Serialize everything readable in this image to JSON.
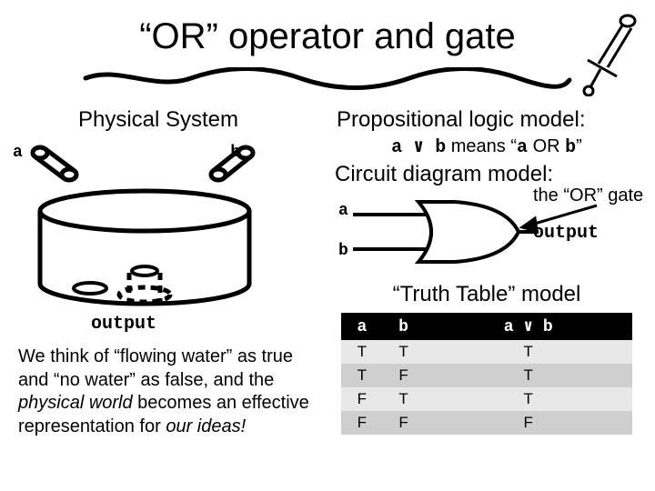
{
  "title": "“OR” operator and gate",
  "left": {
    "heading": "Physical System",
    "labels": {
      "a": "a",
      "b": "b",
      "output": "output"
    },
    "explain_html": "We think of “flowing water” as true and “no water” as false, and the <i>physical world</i> becomes an effective representation for <i>our ideas!</i>"
  },
  "right": {
    "prop": {
      "heading": "Propositional logic model:",
      "sub_html": "<span class=\"mono\">a &or; b</span> means “<span class=\"mono\">a</span> OR <span class=\"mono\">b</span>”"
    },
    "circuit": {
      "heading": "Circuit diagram model:",
      "labels": {
        "a": "a",
        "b": "b"
      },
      "right1": "the “OR” gate",
      "right2_html": "<span style=\"font-family:'Courier New',monospace;font-weight:bold\">output</span>"
    },
    "tt": {
      "heading": "“Truth Table” model",
      "columns": [
        "a",
        "b",
        "a &or; b"
      ],
      "rows": [
        [
          "T",
          "T",
          "T"
        ],
        [
          "T",
          "F",
          "T"
        ],
        [
          "F",
          "T",
          "T"
        ],
        [
          "F",
          "F",
          "F"
        ]
      ],
      "header_bg": "#000000",
      "header_fg": "#ffffff",
      "row_even_bg": "#e8e8e8",
      "row_odd_bg": "#cfcfcf"
    }
  },
  "style": {
    "page_bg": "#ffffff",
    "title_fontsize": 40,
    "subheading_fontsize": 24,
    "body_fontsize": 20,
    "mono_font": "Courier New",
    "stroke_color": "#000000",
    "stroke_width": 3
  }
}
